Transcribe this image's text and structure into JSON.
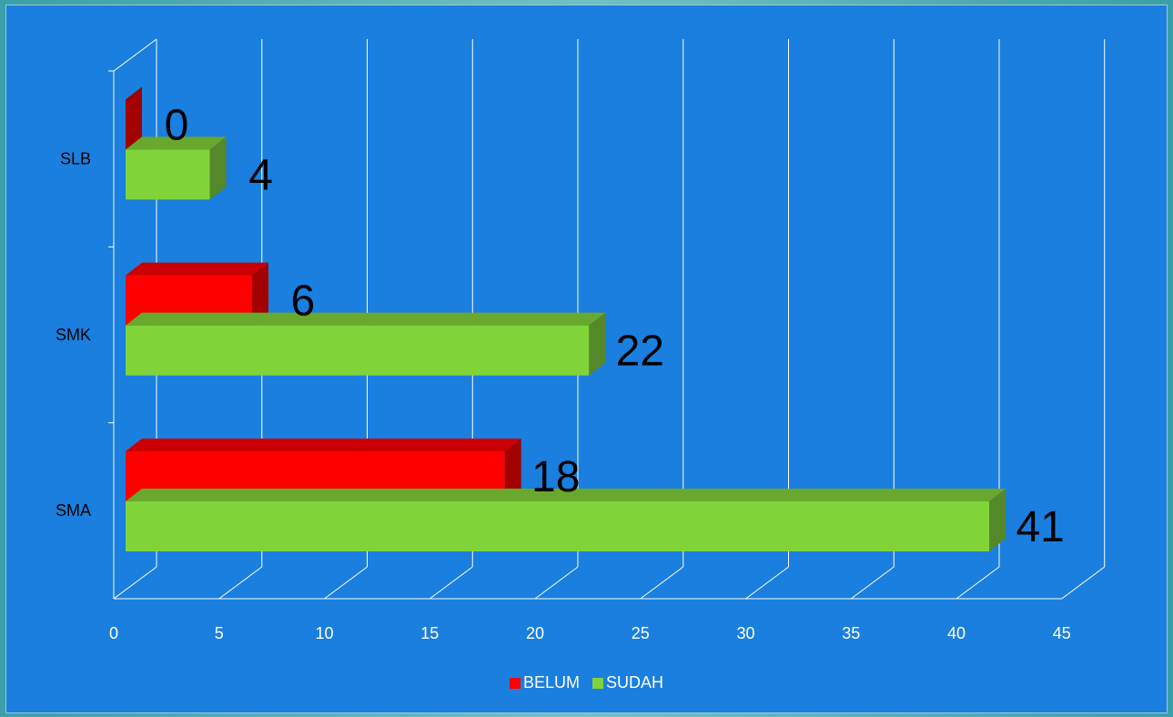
{
  "chart_data": {
    "type": "bar",
    "orientation": "horizontal",
    "style": "3d",
    "categories": [
      "SMA",
      "SMK",
      "SLB"
    ],
    "series": [
      {
        "name": "BELUM",
        "values": [
          18,
          6,
          0
        ],
        "color": "#ff0000",
        "top_color": "#cc0000",
        "side_color": "#a30000"
      },
      {
        "name": "SUDAH",
        "values": [
          41,
          22,
          4
        ],
        "color": "#80d43a",
        "top_color": "#68a82c",
        "side_color": "#55882a"
      }
    ],
    "xlim": [
      0,
      45
    ],
    "xticks": [
      "0",
      "5",
      "10",
      "15",
      "20",
      "25",
      "30",
      "35",
      "40",
      "45"
    ],
    "xlabel": "",
    "ylabel": "",
    "grid": true,
    "legend_position": "bottom"
  },
  "colors": {
    "plot_background": "#1a7fdf",
    "grid": "#ffffff",
    "label_text": "#000000",
    "tick_text": "#ffffff"
  }
}
